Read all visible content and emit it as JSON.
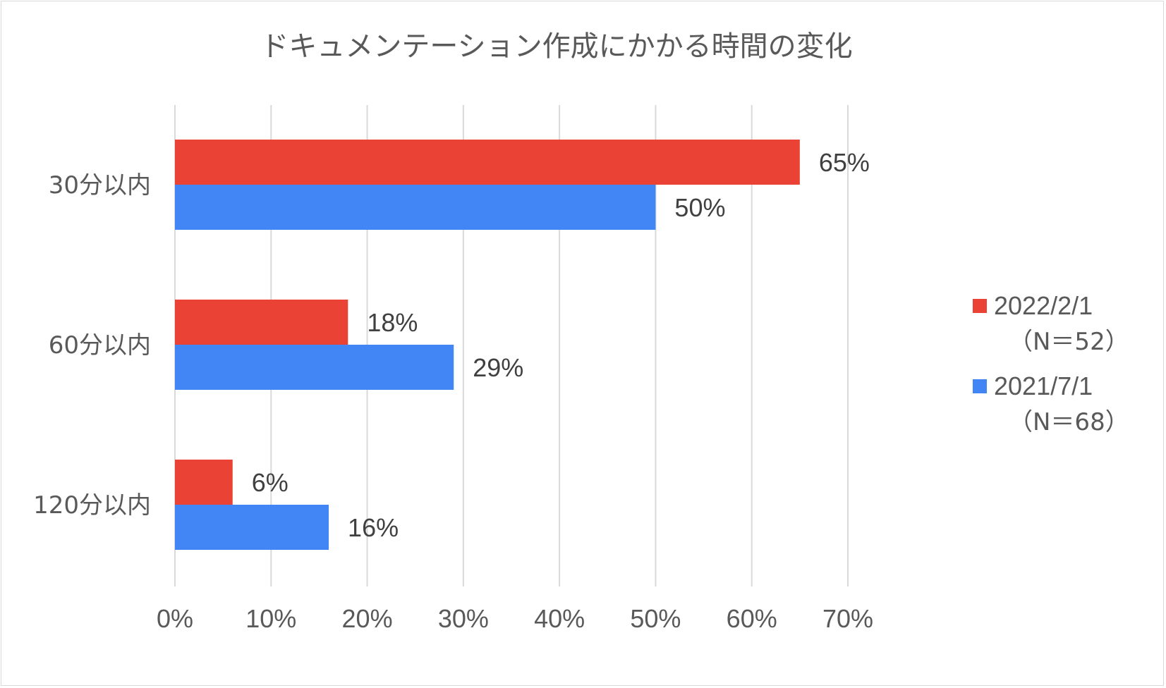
{
  "chart_data": {
    "type": "bar",
    "orientation": "horizontal",
    "title": "ドキュメンテーション作成にかかる時間の変化",
    "categories": [
      "30分以内",
      "60分以内",
      "120分以内"
    ],
    "series": [
      {
        "name": "2022/2/1",
        "name_sub": "（N＝52）",
        "color": "#ea4335",
        "values": [
          65,
          18,
          6
        ],
        "labels": [
          "65%",
          "18%",
          "6%"
        ]
      },
      {
        "name": "2021/7/1",
        "name_sub": "（N＝68）",
        "color": "#4285f4",
        "values": [
          50,
          29,
          16
        ],
        "labels": [
          "50%",
          "29%",
          "16%"
        ]
      }
    ],
    "xlim": [
      0,
      70
    ],
    "x_ticks": [
      0,
      10,
      20,
      30,
      40,
      50,
      60,
      70
    ],
    "x_tick_labels": [
      "0%",
      "10%",
      "20%",
      "30%",
      "40%",
      "50%",
      "60%",
      "70%"
    ],
    "xlabel": "",
    "ylabel": "",
    "grid": true,
    "grid_color": "#d9d9d9",
    "text_color": "#595959",
    "legend_position": "right"
  }
}
